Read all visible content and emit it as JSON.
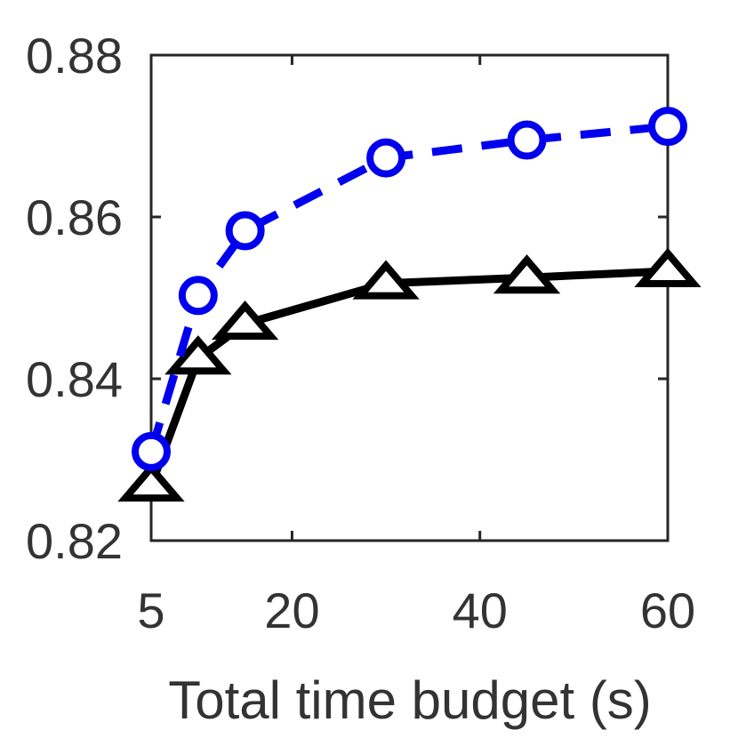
{
  "chart_data": {
    "type": "line",
    "xlabel": "Total time budget (s)",
    "ylabel": "",
    "xlim": [
      5,
      60
    ],
    "ylim": [
      0.82,
      0.88
    ],
    "xticks": [
      5,
      20,
      40,
      60
    ],
    "xtick_labels": [
      "5",
      "20",
      "40",
      "60"
    ],
    "yticks": [
      0.82,
      0.84,
      0.86,
      0.88
    ],
    "ytick_labels": [
      "0.82",
      "0.84",
      "0.86",
      "0.88"
    ],
    "grid": false,
    "series": [
      {
        "marker": "circle",
        "line_style": "dashed",
        "color": "#0000ee",
        "x": [
          5,
          10,
          15,
          30,
          45,
          60
        ],
        "y": [
          0.831,
          0.8503,
          0.8583,
          0.8673,
          0.8695,
          0.8712
        ]
      },
      {
        "marker": "triangle",
        "line_style": "solid",
        "color": "#000000",
        "x": [
          5,
          10,
          15,
          30,
          45,
          60
        ],
        "y": [
          0.8268,
          0.8425,
          0.8468,
          0.8518,
          0.8525,
          0.8533
        ]
      }
    ]
  }
}
